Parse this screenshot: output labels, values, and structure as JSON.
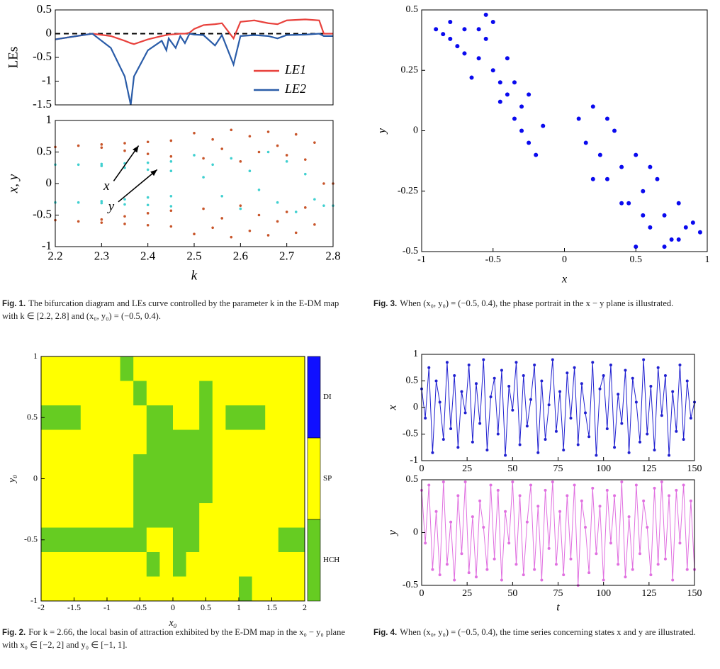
{
  "chart_data": [
    {
      "type": "line",
      "ylabel": "LEs",
      "xlim": [
        2.2,
        2.8
      ],
      "ylim": [
        -1.5,
        0.5
      ],
      "yticks": [
        -1.5,
        -1,
        -0.5,
        0,
        0.5
      ],
      "hline": 0,
      "legend": "lower right",
      "x": [
        2.2,
        2.24,
        2.28,
        2.32,
        2.35,
        2.363,
        2.37,
        2.4,
        2.43,
        2.44,
        2.445,
        2.46,
        2.47,
        2.48,
        2.49,
        2.5,
        2.52,
        2.545,
        2.56,
        2.585,
        2.6,
        2.63,
        2.66,
        2.68,
        2.7,
        2.74,
        2.77,
        2.78,
        2.8
      ],
      "series": [
        {
          "name": "LE1",
          "color": "#e8413c",
          "values": [
            -0.12,
            -0.06,
            0,
            -0.05,
            -0.15,
            -0.2,
            -0.22,
            -0.12,
            -0.05,
            -0.03,
            -0.02,
            -0.01,
            0,
            0,
            0.02,
            0.1,
            0.18,
            0.2,
            0.22,
            -0.1,
            0.25,
            0.28,
            0.22,
            0.2,
            0.28,
            0.3,
            0.28,
            0,
            0
          ]
        },
        {
          "name": "LE2",
          "color": "#2a5ca8",
          "values": [
            -0.12,
            -0.06,
            0,
            -0.3,
            -0.9,
            -1.5,
            -0.9,
            -0.35,
            -0.15,
            -0.35,
            -0.1,
            -0.3,
            -0.05,
            -0.2,
            0,
            -0.02,
            -0.03,
            -0.25,
            -0.03,
            -0.65,
            -0.05,
            -0.03,
            -0.05,
            -0.1,
            -0.03,
            -0.02,
            0,
            -0.05,
            -0.05
          ]
        }
      ]
    },
    {
      "type": "scatter",
      "xlabel": "k",
      "ylabel": "x, y",
      "xlim": [
        2.2,
        2.8
      ],
      "xticks": [
        2.2,
        2.3,
        2.4,
        2.5,
        2.6,
        2.7,
        2.8
      ],
      "ylim": [
        -1,
        1
      ],
      "yticks": [
        -1,
        -0.5,
        0,
        0.5,
        1
      ],
      "series": [
        {
          "name": "x",
          "color": "#c8552a",
          "x": [
            2.2,
            2.25,
            2.3,
            2.35,
            2.4,
            2.45,
            2.3,
            2.35,
            2.4,
            2.45,
            2.2,
            2.25,
            2.3,
            2.35,
            2.4,
            2.45,
            2.3,
            2.35,
            2.4,
            2.45,
            2.5,
            2.52,
            2.54,
            2.56,
            2.58,
            2.6,
            2.62,
            2.64,
            2.66,
            2.68,
            2.7,
            2.72,
            2.74,
            2.76,
            2.5,
            2.52,
            2.54,
            2.56,
            2.58,
            2.6,
            2.62,
            2.64,
            2.66,
            2.68,
            2.7,
            2.72,
            2.74,
            2.76,
            2.78,
            2.8
          ],
          "values": [
            0.58,
            0.6,
            0.62,
            0.64,
            0.66,
            0.68,
            0.57,
            0.52,
            0.47,
            0.43,
            -0.58,
            -0.6,
            -0.62,
            -0.64,
            -0.66,
            -0.68,
            -0.57,
            -0.52,
            -0.47,
            -0.43,
            0.8,
            0.4,
            0.7,
            0.55,
            0.85,
            0.35,
            0.75,
            0.5,
            0.82,
            0.6,
            0.45,
            0.78,
            0.38,
            0.65,
            -0.8,
            -0.4,
            -0.7,
            -0.55,
            -0.85,
            -0.35,
            -0.75,
            -0.5,
            -0.82,
            -0.6,
            -0.45,
            -0.78,
            -0.38,
            -0.65,
            0,
            0
          ]
        },
        {
          "name": "y",
          "color": "#40d0d0",
          "x": [
            2.2,
            2.25,
            2.3,
            2.35,
            2.4,
            2.45,
            2.3,
            2.35,
            2.4,
            2.45,
            2.2,
            2.25,
            2.3,
            2.35,
            2.4,
            2.45,
            2.3,
            2.35,
            2.4,
            2.45,
            2.5,
            2.52,
            2.54,
            2.56,
            2.58,
            2.6,
            2.62,
            2.64,
            2.66,
            2.68,
            2.7,
            2.72,
            2.74,
            2.76,
            2.78,
            2.8
          ],
          "values": [
            0.3,
            0.3,
            0.31,
            0.32,
            0.33,
            0.35,
            0.28,
            0.25,
            0.22,
            0.2,
            -0.3,
            -0.3,
            -0.31,
            -0.33,
            -0.34,
            -0.36,
            -0.28,
            -0.25,
            -0.22,
            -0.2,
            0.45,
            0.1,
            0.3,
            -0.2,
            0.4,
            -0.4,
            0.2,
            -0.1,
            0.5,
            -0.3,
            0.35,
            -0.45,
            0.15,
            -0.25,
            -0.35,
            -0.35
          ]
        }
      ]
    },
    {
      "type": "scatter",
      "xlabel": "x",
      "ylabel": "y",
      "xlim": [
        -1,
        1
      ],
      "xticks": [
        -1,
        -0.5,
        0,
        0.5,
        1
      ],
      "ylim": [
        -0.5,
        0.5
      ],
      "yticks": [
        -0.5,
        -0.25,
        0,
        0.25,
        0.5
      ],
      "series": [
        {
          "color": "#0a0aee",
          "x": [
            -0.9,
            -0.85,
            -0.8,
            -0.75,
            -0.7,
            -0.6,
            -0.55,
            -0.5,
            -0.45,
            -0.4,
            -0.35,
            -0.3,
            -0.25,
            -0.2,
            -0.15,
            -0.8,
            -0.7,
            -0.6,
            -0.5,
            -0.4,
            -0.3,
            -0.65,
            -0.55,
            -0.45,
            -0.35,
            -0.25,
            0.1,
            0.15,
            0.2,
            0.25,
            0.3,
            0.35,
            0.4,
            0.45,
            0.5,
            0.55,
            0.6,
            0.65,
            0.7,
            0.75,
            0.8,
            0.85,
            0.9,
            0.95,
            0.2,
            0.3,
            0.4,
            0.5,
            0.6,
            0.7,
            0.8,
            0.55
          ],
          "values": [
            0.42,
            0.4,
            0.45,
            0.35,
            0.42,
            0.3,
            0.38,
            0.45,
            0.2,
            0.15,
            0.05,
            0.1,
            -0.05,
            -0.1,
            0.02,
            0.38,
            0.32,
            0.42,
            0.25,
            0.3,
            0.0,
            0.22,
            0.48,
            0.12,
            0.2,
            0.15,
            0.05,
            -0.05,
            0.1,
            -0.1,
            -0.2,
            0.0,
            -0.15,
            -0.3,
            -0.1,
            -0.25,
            -0.4,
            -0.2,
            -0.35,
            -0.45,
            -0.3,
            -0.4,
            -0.38,
            -0.42,
            -0.2,
            0.05,
            -0.3,
            -0.48,
            -0.15,
            -0.48,
            -0.45,
            -0.35
          ]
        }
      ]
    },
    {
      "type": "heatmap",
      "xlabel": "x₀",
      "ylabel": "y₀",
      "xlim": [
        -2,
        2
      ],
      "xticks": [
        -2,
        -1.5,
        -1,
        -0.5,
        0,
        0.5,
        1,
        1.5,
        2
      ],
      "ylim": [
        -1,
        1
      ],
      "yticks": [
        -1,
        -0.5,
        0,
        0.5,
        1
      ],
      "categories": [
        "DI",
        "SP",
        "HCH"
      ],
      "colors": [
        "#1010ff",
        "#ffff00",
        "#66cc22"
      ],
      "values": [
        [
          1,
          1,
          1,
          1,
          1,
          1,
          2,
          1,
          1,
          1,
          1,
          1,
          1,
          1,
          1,
          1,
          1,
          1,
          1,
          1
        ],
        [
          1,
          1,
          1,
          1,
          1,
          1,
          1,
          2,
          1,
          1,
          1,
          1,
          2,
          1,
          1,
          1,
          1,
          1,
          1,
          1
        ],
        [
          2,
          2,
          2,
          1,
          1,
          1,
          1,
          1,
          2,
          2,
          1,
          1,
          2,
          1,
          2,
          2,
          2,
          1,
          1,
          1
        ],
        [
          1,
          1,
          1,
          1,
          1,
          1,
          1,
          1,
          2,
          2,
          2,
          2,
          2,
          1,
          1,
          1,
          1,
          1,
          1,
          1
        ],
        [
          1,
          1,
          1,
          1,
          1,
          1,
          1,
          2,
          2,
          2,
          2,
          2,
          2,
          1,
          1,
          1,
          1,
          1,
          1,
          1
        ],
        [
          1,
          1,
          1,
          1,
          1,
          1,
          1,
          2,
          2,
          2,
          2,
          2,
          2,
          1,
          1,
          1,
          1,
          1,
          1,
          1
        ],
        [
          1,
          1,
          1,
          1,
          1,
          1,
          1,
          2,
          2,
          2,
          2,
          2,
          1,
          1,
          1,
          1,
          1,
          1,
          1,
          1
        ],
        [
          2,
          2,
          2,
          2,
          2,
          2,
          2,
          2,
          1,
          1,
          2,
          2,
          1,
          1,
          1,
          1,
          1,
          1,
          2,
          2
        ],
        [
          1,
          1,
          1,
          1,
          1,
          1,
          1,
          1,
          2,
          1,
          2,
          1,
          1,
          1,
          1,
          1,
          1,
          1,
          1,
          1
        ],
        [
          1,
          1,
          1,
          1,
          1,
          1,
          1,
          1,
          1,
          1,
          1,
          1,
          1,
          1,
          1,
          2,
          1,
          1,
          1,
          1
        ]
      ]
    },
    {
      "type": "line",
      "markers": true,
      "ylabel": "x",
      "xlim": [
        0,
        150
      ],
      "xticks": [
        0,
        25,
        50,
        75,
        100,
        125,
        150
      ],
      "ylim": [
        -1,
        1
      ],
      "yticks": [
        -1,
        -0.5,
        0,
        0.5,
        1
      ],
      "x": [
        0,
        2,
        4,
        6,
        8,
        10,
        12,
        14,
        16,
        18,
        20,
        22,
        24,
        26,
        28,
        30,
        32,
        34,
        36,
        38,
        40,
        42,
        44,
        46,
        48,
        50,
        52,
        54,
        56,
        58,
        60,
        62,
        64,
        66,
        68,
        70,
        72,
        74,
        76,
        78,
        80,
        82,
        84,
        86,
        88,
        90,
        92,
        94,
        96,
        98,
        100,
        102,
        104,
        106,
        108,
        110,
        112,
        114,
        116,
        118,
        120,
        122,
        124,
        126,
        128,
        130,
        132,
        134,
        136,
        138,
        140,
        142,
        144,
        146,
        148,
        150
      ],
      "series": [
        {
          "color": "#2020d0",
          "values": [
            0.35,
            -0.2,
            0.75,
            -0.85,
            0.5,
            0.1,
            -0.6,
            0.85,
            -0.4,
            0.6,
            -0.75,
            0.3,
            -0.1,
            0.8,
            -0.65,
            0.45,
            -0.3,
            0.9,
            -0.8,
            0.2,
            0.55,
            -0.5,
            0.7,
            -0.9,
            0.4,
            -0.05,
            0.85,
            -0.7,
            0.6,
            -0.35,
            0.15,
            0.8,
            -0.85,
            0.5,
            -0.6,
            0.05,
            0.9,
            -0.45,
            0.3,
            -0.8,
            0.65,
            -0.2,
            0.75,
            -0.7,
            0.45,
            -0.1,
            -0.55,
            0.85,
            -0.9,
            0.35,
            0.6,
            -0.4,
            0.8,
            -0.75,
            0.25,
            -0.3,
            0.7,
            -0.85,
            0.55,
            0.1,
            -0.65,
            0.9,
            -0.5,
            0.4,
            -0.8,
            0.75,
            -0.15,
            0.6,
            -0.9,
            0.3,
            -0.45,
            0.8,
            -0.6,
            0.5,
            -0.2,
            0.1
          ]
        }
      ]
    },
    {
      "type": "line",
      "markers": true,
      "xlabel": "t",
      "ylabel": "y",
      "xlim": [
        0,
        150
      ],
      "xticks": [
        0,
        25,
        50,
        75,
        100,
        125,
        150
      ],
      "ylim": [
        -0.5,
        0.5
      ],
      "yticks": [
        -0.5,
        0,
        0.5
      ],
      "x": [
        0,
        2,
        4,
        6,
        8,
        10,
        12,
        14,
        16,
        18,
        20,
        22,
        24,
        26,
        28,
        30,
        32,
        34,
        36,
        38,
        40,
        42,
        44,
        46,
        48,
        50,
        52,
        54,
        56,
        58,
        60,
        62,
        64,
        66,
        68,
        70,
        72,
        74,
        76,
        78,
        80,
        82,
        84,
        86,
        88,
        90,
        92,
        94,
        96,
        98,
        100,
        102,
        104,
        106,
        108,
        110,
        112,
        114,
        116,
        118,
        120,
        122,
        124,
        126,
        128,
        130,
        132,
        134,
        136,
        138,
        140,
        142,
        144,
        146,
        148,
        150
      ],
      "series": [
        {
          "color": "#e070e0",
          "values": [
            0.4,
            -0.1,
            0.45,
            -0.35,
            0.2,
            -0.4,
            0.48,
            -0.3,
            0.1,
            -0.45,
            0.35,
            -0.2,
            0.48,
            -0.38,
            0.15,
            -0.42,
            0.3,
            0.05,
            -0.35,
            0.45,
            -0.25,
            0.4,
            -0.45,
            0.2,
            -0.1,
            0.48,
            -0.3,
            0.35,
            -0.4,
            0.1,
            0.45,
            -0.35,
            0.25,
            -0.45,
            0.4,
            -0.15,
            0.48,
            -0.3,
            0.2,
            -0.4,
            0.35,
            -0.25,
            0.45,
            -0.5,
            0.3,
            0.05,
            -0.38,
            0.42,
            -0.2,
            0.25,
            -0.45,
            0.4,
            -0.1,
            0.35,
            -0.3,
            0.48,
            -0.42,
            0.15,
            -0.35,
            0.45,
            -0.2,
            0.3,
            0.05,
            -0.4,
            0.42,
            -0.3,
            0.48,
            -0.25,
            0.35,
            -0.45,
            0.4,
            -0.1,
            0.45,
            -0.35,
            0.3,
            -0.35
          ]
        }
      ]
    }
  ],
  "captions": [
    {
      "label": "Fig. 1.",
      "text": "The bifurcation diagram and LEs curve controlled by the parameter k in the E-DM map with k ∈ [2.2, 2.8] and (x₀, y₀) = (−0.5, 0.4)."
    },
    {
      "label": "Fig. 2.",
      "text": "For k = 2.66, the local basin of attraction exhibited by the E-DM map in the x₀ − y₀ plane with x₀ ∈ [−2, 2] and y₀ ∈ [−1, 1]."
    },
    {
      "label": "Fig. 3.",
      "text": "When (x₀, y₀) = (−0.5, 0.4), the phase portrait in the x − y plane is illustrated."
    },
    {
      "label": "Fig. 4.",
      "text": "When (x₀, y₀) = (−0.5, 0.4), the time series concerning states x and y are illustrated."
    }
  ]
}
